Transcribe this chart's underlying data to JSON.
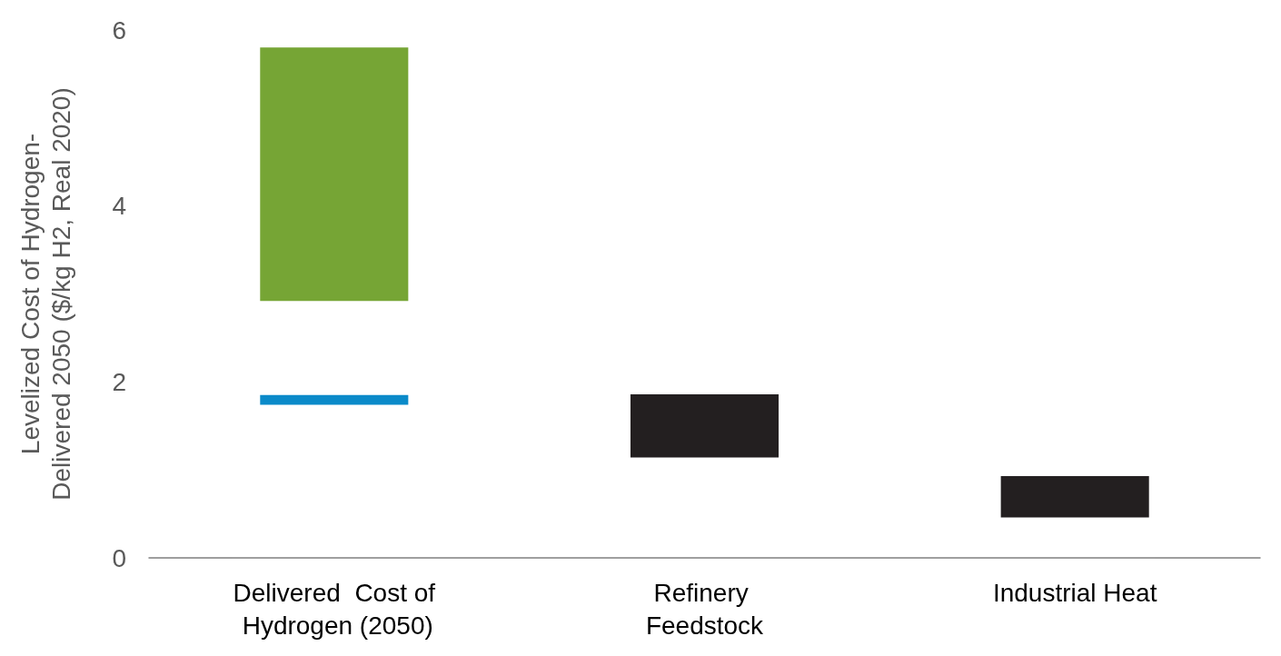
{
  "chart_data": {
    "type": "bar",
    "ylabel": "Levelized Cost of Hydrogen- Delivered 2050 ($/kg H2, Real 2020)",
    "categories": [
      "Delivered  Cost of Hydrogen (2050)",
      "Refinery Feedstock",
      "Industrial Heat"
    ],
    "series": [
      {
        "color": "#76a535",
        "values": [
          2.88,
          null,
          null
        ],
        "base": [
          2.92,
          null,
          null
        ]
      },
      {
        "color": "#0b8ac9",
        "values": [
          0.11,
          null,
          null
        ],
        "base": [
          1.74,
          null,
          null
        ]
      },
      {
        "color": "#231f20",
        "values": [
          null,
          0.72,
          0.47
        ],
        "base": [
          null,
          1.14,
          0.46
        ]
      }
    ],
    "ylim": [
      0,
      6
    ],
    "yticks": [
      0,
      2,
      4,
      6
    ],
    "grid": false
  }
}
